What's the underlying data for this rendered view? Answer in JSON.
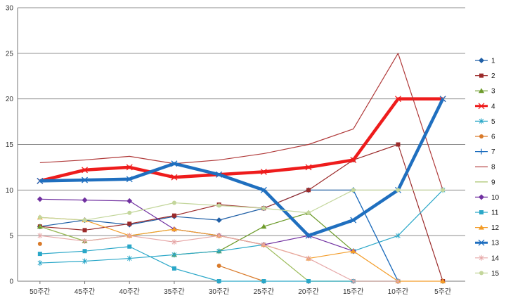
{
  "chart_data": {
    "type": "line",
    "categories": [
      "50주간",
      "45주간",
      "40주간",
      "35주간",
      "30주간",
      "25주간",
      "20주간",
      "15주간",
      "10주간",
      "5주간"
    ],
    "ylim": [
      0,
      30
    ],
    "yticks": [
      0,
      5,
      10,
      15,
      20,
      25,
      30
    ],
    "grid": true,
    "legend_position": "right",
    "series": [
      {
        "name": "1",
        "color": "#1f5fa6",
        "marker": "diamond",
        "width": 1.2,
        "values": [
          6,
          6.7,
          6.2,
          7.1,
          6.7,
          8,
          10,
          10,
          0,
          null
        ]
      },
      {
        "name": "2",
        "color": "#9b2a2a",
        "marker": "square",
        "width": 1.2,
        "values": [
          6,
          5.6,
          6.3,
          7.2,
          8.4,
          8,
          10,
          13.3,
          15,
          0
        ]
      },
      {
        "name": "3",
        "color": "#6d9b2b",
        "marker": "triangle",
        "width": 1.2,
        "values": [
          6,
          4.4,
          null,
          2.9,
          3.3,
          6,
          7.5,
          3.3,
          null,
          null
        ]
      },
      {
        "name": "4",
        "color": "#ee1c1c",
        "marker": "x",
        "width": 4.5,
        "values": [
          11,
          12.2,
          12.5,
          11.4,
          11.7,
          12,
          12.5,
          13.3,
          20,
          20
        ]
      },
      {
        "name": "5",
        "color": "#2aa7c8",
        "marker": "asterisk",
        "width": 1.2,
        "values": [
          2,
          2.2,
          2.5,
          2.9,
          3.3,
          4,
          null,
          3.3,
          5,
          10
        ]
      },
      {
        "name": "6",
        "color": "#d97a2a",
        "marker": "circle",
        "width": 1.2,
        "values": [
          4.1,
          null,
          null,
          null,
          1.7,
          0,
          null,
          null,
          null,
          null
        ]
      },
      {
        "name": "7",
        "color": "#1f6fbf",
        "marker": "plus",
        "width": 1.2,
        "values": [
          null,
          null,
          null,
          null,
          null,
          null,
          null,
          10,
          0,
          null
        ]
      },
      {
        "name": "8",
        "color": "#b03a3a",
        "marker": "none",
        "width": 1.2,
        "values": [
          13,
          13.3,
          13.7,
          12.9,
          13.3,
          14,
          15,
          16.7,
          25,
          10
        ]
      },
      {
        "name": "9",
        "color": "#9bbb59",
        "marker": "none",
        "width": 1.2,
        "values": [
          6,
          4.4,
          5,
          5.7,
          5,
          4,
          0,
          0,
          0,
          null
        ]
      },
      {
        "name": "10",
        "color": "#7030a0",
        "marker": "diamond",
        "width": 1.2,
        "values": [
          9,
          8.9,
          8.8,
          5.7,
          5,
          4,
          5,
          3.3,
          null,
          null
        ]
      },
      {
        "name": "11",
        "color": "#2aa7c8",
        "marker": "square",
        "width": 1.2,
        "values": [
          3,
          3.3,
          3.8,
          1.4,
          0,
          0,
          0,
          0,
          0,
          null
        ]
      },
      {
        "name": "12",
        "color": "#f39c28",
        "marker": "triangle",
        "width": 1.2,
        "values": [
          7,
          6.7,
          5,
          5.7,
          5,
          4,
          2.5,
          3.3,
          0,
          0
        ]
      },
      {
        "name": "13",
        "color": "#1f6fbf",
        "marker": "x",
        "width": 4.5,
        "values": [
          11,
          11.1,
          11.2,
          12.9,
          11.7,
          10,
          5,
          6.7,
          10,
          20
        ]
      },
      {
        "name": "14",
        "color": "#e6a7a7",
        "marker": "asterisk",
        "width": 1.2,
        "values": [
          5,
          4.4,
          5,
          4.3,
          5,
          4,
          2.5,
          0,
          0,
          null
        ]
      },
      {
        "name": "15",
        "color": "#c3d69b",
        "marker": "circle",
        "width": 1.2,
        "values": [
          7,
          6.7,
          7.5,
          8.6,
          8.3,
          8,
          7.5,
          10,
          10,
          10
        ]
      }
    ]
  }
}
